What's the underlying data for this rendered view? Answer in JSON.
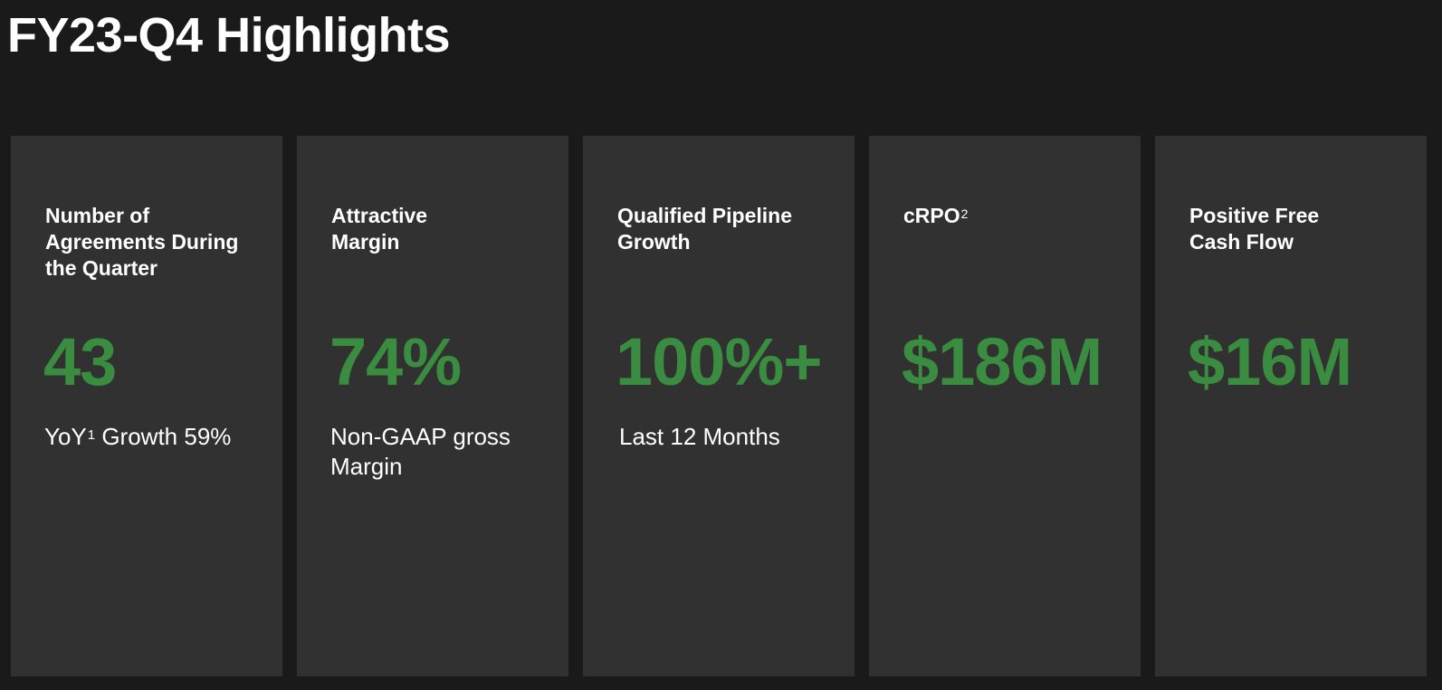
{
  "page": {
    "title": "FY23-Q4 Highlights"
  },
  "colors": {
    "background": "#1a1a1a",
    "card": "#313131",
    "accent": "#3a8c40",
    "text": "#ffffff"
  },
  "cards": [
    {
      "title": "Number of Agreements During the Quarter",
      "title_sup": "",
      "value": "43",
      "sub_prefix": "YoY",
      "sub_sup": "1",
      "sub_suffix": " Growth 59%"
    },
    {
      "title": "Attractive Margin",
      "title_sup": "",
      "value": "74%",
      "sub_prefix": "Non-GAAP gross Margin",
      "sub_sup": "",
      "sub_suffix": ""
    },
    {
      "title": "Qualified Pipeline Growth",
      "title_sup": "",
      "value": "100%+",
      "sub_prefix": "Last 12 Months",
      "sub_sup": "",
      "sub_suffix": ""
    },
    {
      "title": "cRPO",
      "title_sup": "2",
      "value": "$186M",
      "sub_prefix": "",
      "sub_sup": "",
      "sub_suffix": ""
    },
    {
      "title": "Positive Free Cash Flow",
      "title_sup": "",
      "value": "$16M",
      "sub_prefix": "",
      "sub_sup": "",
      "sub_suffix": ""
    }
  ]
}
